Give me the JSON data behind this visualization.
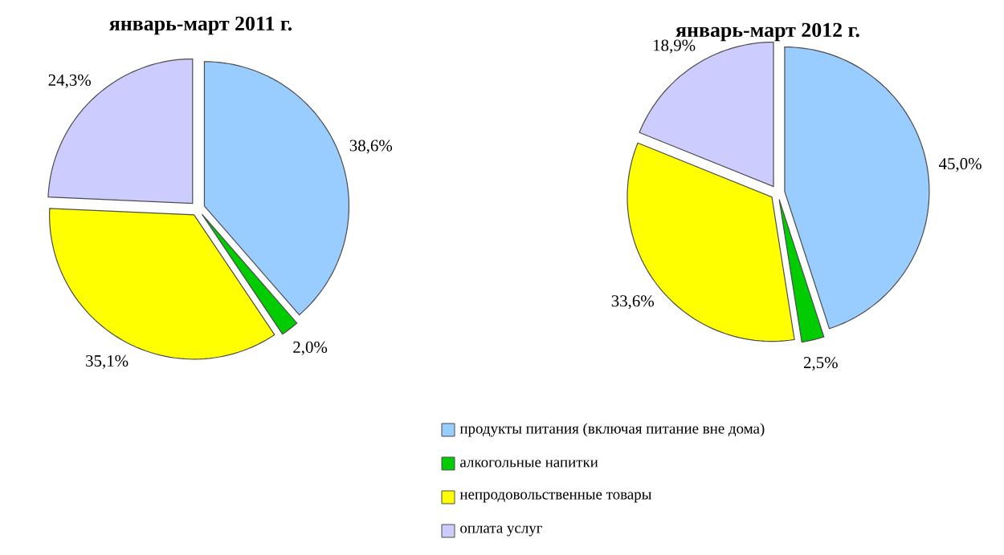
{
  "chart_data": [
    {
      "type": "pie",
      "title": "январь-март 2011 г.",
      "categories": [
        "продукты питания (включая питание вне дома)",
        "алкогольные напитки",
        "непродовольственные товары",
        "оплата услуг"
      ],
      "values": [
        38.6,
        2.0,
        35.1,
        24.3
      ],
      "value_labels": [
        "38,6%",
        "2,0%",
        "35,1%",
        "24,3%"
      ],
      "colors": [
        "#99ccff",
        "#00cc00",
        "#ffff00",
        "#ccccff"
      ],
      "legend": "bottom"
    },
    {
      "type": "pie",
      "title": "январь-март 2012 г.",
      "categories": [
        null,
        null,
        null,
        null
      ],
      "values": [
        45.0,
        2.5,
        33.6,
        18.9
      ],
      "value_labels": [
        "45,0%",
        "2,5%",
        "33,6%",
        "18,9%"
      ],
      "colors": [
        "#99ccff",
        "#00cc00",
        "#ffff00",
        "#ccccff"
      ]
    }
  ]
}
